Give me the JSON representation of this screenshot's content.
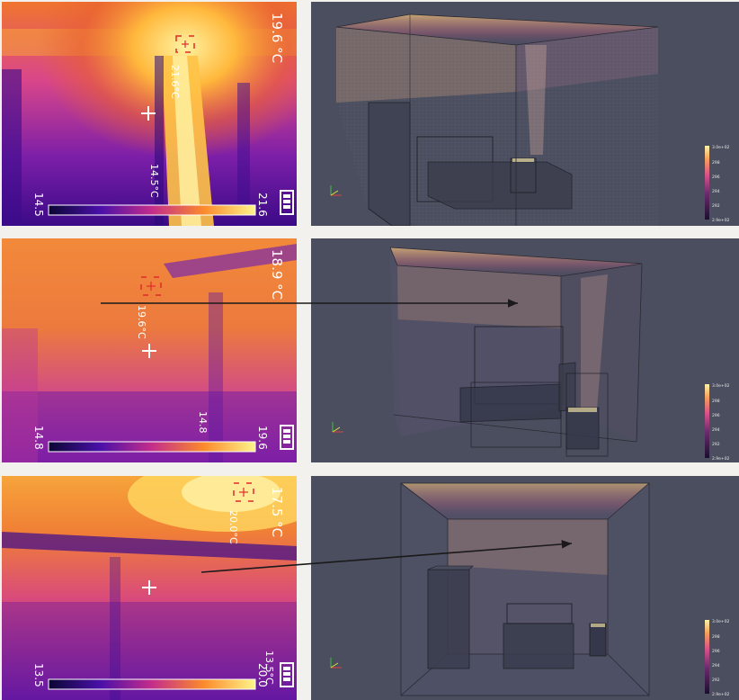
{
  "rows": [
    {
      "thermal": {
        "spot_temp": "19.6 °C",
        "hot_temp": "21.6°C",
        "cold_temp": "14.5°C",
        "scale_min": "14.5",
        "scale_max": "21.6"
      },
      "sim": {
        "colorbar_labels": [
          "3.0e+02",
          "298",
          "296",
          "294",
          "292",
          "2.9e+02"
        ]
      }
    },
    {
      "thermal": {
        "spot_temp": "18.9 °C",
        "hot_temp": "19.6°C",
        "cold_temp": "14.8",
        "scale_min": "14.8",
        "scale_max": "19.6"
      },
      "sim": {
        "colorbar_labels": [
          "3.0e+02",
          "298",
          "296",
          "294",
          "292",
          "2.9e+02"
        ]
      }
    },
    {
      "thermal": {
        "spot_temp": "17.5 °C",
        "hot_temp": "20.0°C",
        "cold_temp": "13.5°C",
        "scale_min": "13.5",
        "scale_max": "20.0"
      },
      "sim": {
        "colorbar_labels": [
          "3.0e+02",
          "298",
          "296",
          "294",
          "292",
          "2.9e+02"
        ]
      }
    }
  ],
  "colors": {
    "thermal_dark": "#1d0a6e",
    "thermal_mid": "#c22d8c",
    "thermal_hot": "#ffd23a",
    "sim_bg": "#4a4e5e",
    "arrow": "#1a1a1a"
  },
  "icons": [
    "crosshair-icon",
    "spot-box-icon",
    "battery-icon",
    "axes-triad-icon"
  ]
}
